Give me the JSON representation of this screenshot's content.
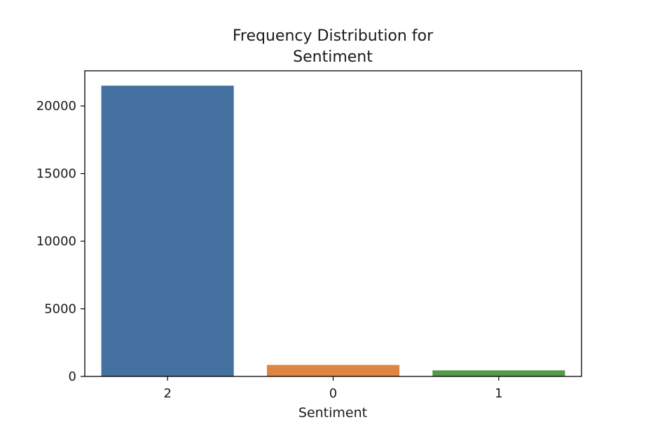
{
  "chart_data": {
    "type": "bar",
    "title_lines": [
      "Frequency Distribution for",
      "Sentiment"
    ],
    "xlabel": "Sentiment",
    "ylabel": "",
    "categories": [
      "2",
      "0",
      "1"
    ],
    "values": [
      21500,
      850,
      450
    ],
    "colors": [
      "#4471a0",
      "#dd8543",
      "#55994a"
    ],
    "ylim": [
      0,
      22600
    ],
    "yticks": [
      0,
      5000,
      10000,
      15000,
      20000
    ],
    "ytick_labels": [
      "0",
      "5000",
      "10000",
      "15000",
      "20000"
    ],
    "grid": false,
    "legend": "none"
  }
}
